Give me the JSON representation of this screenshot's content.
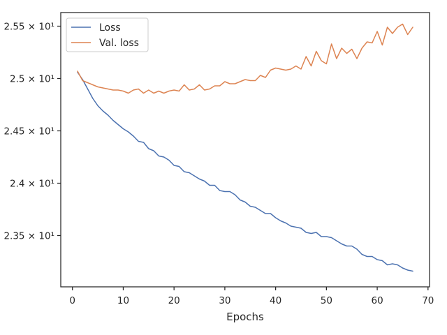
{
  "chart_data": {
    "type": "line",
    "title": "",
    "xlabel": "Epochs",
    "ylabel": "",
    "xlim": [
      -2.3,
      70.3
    ],
    "ylim": [
      23.01,
      25.63
    ],
    "xticks": [
      0,
      10,
      20,
      30,
      40,
      50,
      60,
      70
    ],
    "xtick_labels": [
      "0",
      "10",
      "20",
      "30",
      "40",
      "50",
      "60",
      "70"
    ],
    "yticks": [
      23.5,
      24.0,
      24.5,
      25.0,
      25.5
    ],
    "ytick_labels": [
      "2.35 × 10¹",
      "2.4 × 10¹",
      "2.45 × 10¹",
      "2.5 × 10¹",
      "2.55 × 10¹"
    ],
    "grid": false,
    "legend_position": "top-left",
    "series": [
      {
        "name": "Loss",
        "color": "#4c72b0",
        "x": [
          1,
          2,
          3,
          4,
          5,
          6,
          7,
          8,
          9,
          10,
          11,
          12,
          13,
          14,
          15,
          16,
          17,
          18,
          19,
          20,
          21,
          22,
          23,
          24,
          25,
          26,
          27,
          28,
          29,
          30,
          31,
          32,
          33,
          34,
          35,
          36,
          37,
          38,
          39,
          40,
          41,
          42,
          43,
          44,
          45,
          46,
          47,
          48,
          49,
          50,
          51,
          52,
          53,
          54,
          55,
          56,
          57,
          58,
          59,
          60,
          61,
          62,
          63,
          64,
          65,
          66,
          67
        ],
        "y": [
          25.06,
          24.99,
          24.9,
          24.81,
          24.74,
          24.69,
          24.65,
          24.6,
          24.56,
          24.52,
          24.49,
          24.45,
          24.4,
          24.39,
          24.33,
          24.31,
          24.26,
          24.25,
          24.22,
          24.17,
          24.16,
          24.11,
          24.1,
          24.07,
          24.04,
          24.02,
          23.98,
          23.98,
          23.93,
          23.92,
          23.92,
          23.89,
          23.84,
          23.82,
          23.78,
          23.77,
          23.74,
          23.71,
          23.71,
          23.67,
          23.64,
          23.62,
          23.59,
          23.58,
          23.57,
          23.53,
          23.52,
          23.53,
          23.49,
          23.49,
          23.48,
          23.45,
          23.42,
          23.4,
          23.4,
          23.37,
          23.32,
          23.3,
          23.3,
          23.27,
          23.26,
          23.22,
          23.23,
          23.22,
          23.19,
          23.17,
          23.16
        ]
      },
      {
        "name": "Val. loss",
        "color": "#dd8452",
        "x": [
          1,
          2,
          3,
          4,
          5,
          6,
          7,
          8,
          9,
          10,
          11,
          12,
          13,
          14,
          15,
          16,
          17,
          18,
          19,
          20,
          21,
          22,
          23,
          24,
          25,
          26,
          27,
          28,
          29,
          30,
          31,
          32,
          33,
          34,
          35,
          36,
          37,
          38,
          39,
          40,
          41,
          42,
          43,
          44,
          45,
          46,
          47,
          48,
          49,
          50,
          51,
          52,
          53,
          54,
          55,
          56,
          57,
          58,
          59,
          60,
          61,
          62,
          63,
          64,
          65,
          66,
          67
        ],
        "y": [
          25.07,
          24.98,
          24.96,
          24.94,
          24.92,
          24.91,
          24.9,
          24.89,
          24.89,
          24.88,
          24.86,
          24.89,
          24.9,
          24.86,
          24.89,
          24.86,
          24.88,
          24.86,
          24.88,
          24.89,
          24.88,
          24.94,
          24.89,
          24.9,
          24.94,
          24.89,
          24.9,
          24.93,
          24.93,
          24.97,
          24.95,
          24.95,
          24.97,
          24.99,
          24.98,
          24.98,
          25.03,
          25.01,
          25.08,
          25.1,
          25.09,
          25.08,
          25.09,
          25.12,
          25.09,
          25.21,
          25.12,
          25.26,
          25.17,
          25.14,
          25.33,
          25.19,
          25.29,
          25.24,
          25.28,
          25.19,
          25.29,
          25.35,
          25.34,
          25.45,
          25.32,
          25.49,
          25.43,
          25.49,
          25.52,
          25.42,
          25.49
        ]
      }
    ]
  }
}
